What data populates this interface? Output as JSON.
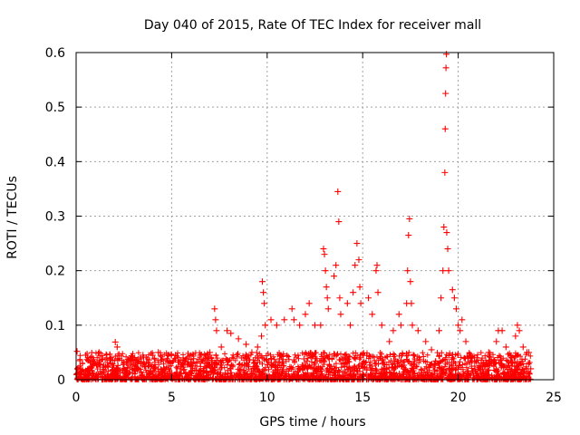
{
  "chart_data": {
    "type": "scatter",
    "title": "Day 040 of 2015, Rate Of TEC Index for receiver mall",
    "xlabel": "GPS time / hours",
    "ylabel": "ROTI / TECUs",
    "xlim": [
      0,
      25
    ],
    "ylim": [
      0,
      0.6
    ],
    "xticks": [
      0,
      5,
      10,
      15,
      20,
      25
    ],
    "xtick_labels": [
      "0",
      "5",
      "10",
      "15",
      "20",
      "25"
    ],
    "yticks": [
      0,
      0.1,
      0.2,
      0.3,
      0.4,
      0.5,
      0.6
    ],
    "ytick_labels": [
      "0",
      "0.1",
      "0.2",
      "0.3",
      "0.4",
      "0.5",
      "0.6"
    ],
    "grid": true,
    "marker": "+",
    "color": "#ff0000",
    "series": [
      {
        "name": "ROTI",
        "points": [
          [
            0.05,
            0.052
          ],
          [
            0.2,
            0.035
          ],
          [
            0.5,
            0.045
          ],
          [
            0.8,
            0.035
          ],
          [
            1.1,
            0.03
          ],
          [
            1.2,
            0.05
          ],
          [
            1.6,
            0.04
          ],
          [
            2.05,
            0.069
          ],
          [
            2.15,
            0.06
          ],
          [
            2.5,
            0.03
          ],
          [
            3.0,
            0.035
          ],
          [
            3.5,
            0.045
          ],
          [
            4.0,
            0.045
          ],
          [
            4.3,
            0.05
          ],
          [
            4.8,
            0.035
          ],
          [
            5.2,
            0.045
          ],
          [
            5.6,
            0.04
          ],
          [
            6.0,
            0.03
          ],
          [
            6.5,
            0.045
          ],
          [
            7.0,
            0.05
          ],
          [
            7.25,
            0.13
          ],
          [
            7.3,
            0.11
          ],
          [
            7.35,
            0.09
          ],
          [
            7.6,
            0.06
          ],
          [
            7.9,
            0.09
          ],
          [
            8.1,
            0.085
          ],
          [
            8.5,
            0.075
          ],
          [
            8.9,
            0.065
          ],
          [
            9.2,
            0.05
          ],
          [
            9.5,
            0.06
          ],
          [
            9.7,
            0.08
          ],
          [
            9.75,
            0.18
          ],
          [
            9.8,
            0.16
          ],
          [
            9.85,
            0.14
          ],
          [
            9.9,
            0.1
          ],
          [
            10.2,
            0.11
          ],
          [
            10.5,
            0.1
          ],
          [
            10.9,
            0.11
          ],
          [
            11.3,
            0.13
          ],
          [
            11.4,
            0.11
          ],
          [
            11.7,
            0.1
          ],
          [
            12.0,
            0.12
          ],
          [
            12.2,
            0.14
          ],
          [
            12.5,
            0.1
          ],
          [
            12.8,
            0.1
          ],
          [
            12.95,
            0.24
          ],
          [
            13.0,
            0.23
          ],
          [
            13.05,
            0.2
          ],
          [
            13.1,
            0.17
          ],
          [
            13.15,
            0.15
          ],
          [
            13.2,
            0.13
          ],
          [
            13.5,
            0.19
          ],
          [
            13.6,
            0.21
          ],
          [
            13.7,
            0.345
          ],
          [
            13.75,
            0.29
          ],
          [
            13.8,
            0.15
          ],
          [
            13.85,
            0.12
          ],
          [
            14.2,
            0.14
          ],
          [
            14.35,
            0.1
          ],
          [
            14.5,
            0.16
          ],
          [
            14.6,
            0.21
          ],
          [
            14.7,
            0.25
          ],
          [
            14.8,
            0.22
          ],
          [
            14.85,
            0.17
          ],
          [
            14.9,
            0.14
          ],
          [
            15.3,
            0.15
          ],
          [
            15.5,
            0.12
          ],
          [
            15.7,
            0.2
          ],
          [
            15.75,
            0.21
          ],
          [
            15.8,
            0.16
          ],
          [
            16.0,
            0.1
          ],
          [
            16.4,
            0.07
          ],
          [
            16.6,
            0.09
          ],
          [
            16.9,
            0.12
          ],
          [
            17.0,
            0.1
          ],
          [
            17.3,
            0.14
          ],
          [
            17.35,
            0.2
          ],
          [
            17.4,
            0.265
          ],
          [
            17.45,
            0.295
          ],
          [
            17.5,
            0.18
          ],
          [
            17.55,
            0.14
          ],
          [
            17.6,
            0.1
          ],
          [
            17.9,
            0.09
          ],
          [
            18.3,
            0.07
          ],
          [
            18.6,
            0.055
          ],
          [
            19.0,
            0.09
          ],
          [
            19.1,
            0.15
          ],
          [
            19.2,
            0.2
          ],
          [
            19.25,
            0.28
          ],
          [
            19.3,
            0.38
          ],
          [
            19.32,
            0.46
          ],
          [
            19.34,
            0.525
          ],
          [
            19.36,
            0.572
          ],
          [
            19.38,
            0.597
          ],
          [
            19.4,
            0.27
          ],
          [
            19.45,
            0.24
          ],
          [
            19.5,
            0.2
          ],
          [
            19.7,
            0.165
          ],
          [
            19.8,
            0.15
          ],
          [
            19.9,
            0.13
          ],
          [
            20.0,
            0.1
          ],
          [
            20.1,
            0.09
          ],
          [
            20.2,
            0.11
          ],
          [
            20.4,
            0.07
          ],
          [
            20.7,
            0.04
          ],
          [
            21.2,
            0.03
          ],
          [
            21.6,
            0.05
          ],
          [
            22.0,
            0.07
          ],
          [
            22.1,
            0.09
          ],
          [
            22.3,
            0.09
          ],
          [
            22.5,
            0.06
          ],
          [
            22.8,
            0.04
          ],
          [
            23.0,
            0.08
          ],
          [
            23.1,
            0.1
          ],
          [
            23.2,
            0.09
          ],
          [
            23.4,
            0.06
          ],
          [
            23.6,
            0.05
          ],
          [
            23.7,
            0.05
          ],
          [
            23.8,
            0.02
          ]
        ]
      }
    ]
  }
}
